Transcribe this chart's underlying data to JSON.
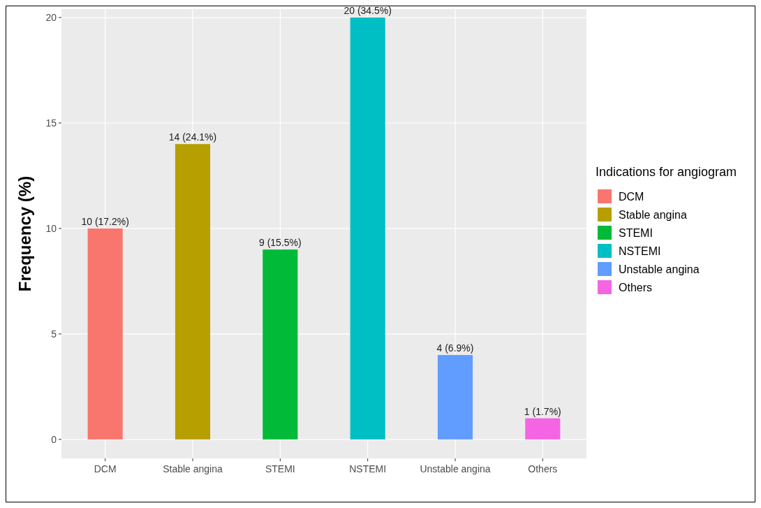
{
  "chart_data": {
    "type": "bar",
    "ylabel": "Frequency (%)",
    "legend_title": "Indications for angiogram",
    "categories": [
      "DCM",
      "Stable angina",
      "STEMI",
      "NSTEMI",
      "Unstable angina",
      "Others"
    ],
    "series": [
      {
        "name": "DCM",
        "color": "#f8766d",
        "values": [
          10,
          null,
          null,
          null,
          null,
          null
        ],
        "value_labels": [
          "10 (17.2%)",
          null,
          null,
          null,
          null,
          null
        ]
      },
      {
        "name": "Stable angina",
        "color": "#b79f00",
        "values": [
          null,
          14,
          null,
          null,
          null,
          null
        ],
        "value_labels": [
          null,
          "14 (24.1%)",
          null,
          null,
          null,
          null
        ]
      },
      {
        "name": "STEMI",
        "color": "#00ba38",
        "values": [
          null,
          null,
          9,
          null,
          null,
          null
        ],
        "value_labels": [
          null,
          null,
          "9 (15.5%)",
          null,
          null,
          null
        ]
      },
      {
        "name": "NSTEMI",
        "color": "#00bfc4",
        "values": [
          null,
          null,
          null,
          20,
          null,
          null
        ],
        "value_labels": [
          null,
          null,
          null,
          "20 (34.5%)",
          null,
          null
        ]
      },
      {
        "name": "Unstable angina",
        "color": "#619cff",
        "values": [
          null,
          null,
          null,
          null,
          4,
          null
        ],
        "value_labels": [
          null,
          null,
          null,
          null,
          "4 (6.9%)",
          null
        ]
      },
      {
        "name": "Others",
        "color": "#f564e3",
        "values": [
          null,
          null,
          null,
          null,
          null,
          1
        ],
        "value_labels": [
          null,
          null,
          null,
          null,
          null,
          "1 (1.7%)"
        ]
      }
    ],
    "ylim": [
      -0.9,
      20.4
    ],
    "yticks": [
      0,
      5,
      10,
      15,
      20
    ],
    "grid": true,
    "legend": "right"
  }
}
